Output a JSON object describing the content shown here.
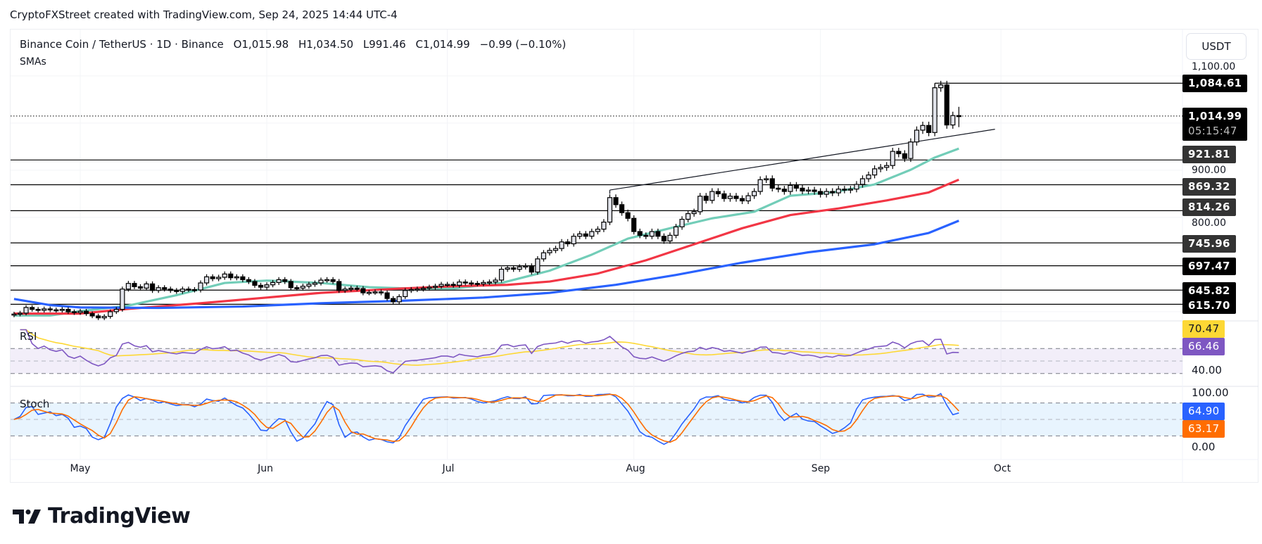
{
  "credit": "CryptoFXStreet created with TradingView.com, Sep 24, 2025 14:44 UTC-4",
  "legend": {
    "symbol": "Binance Coin / TetherUS · 1D · Binance",
    "open": "O1,015.98",
    "high": "H1,034.50",
    "low": "L991.46",
    "close": "C1,014.99",
    "change": "−0.99 (−0.10%)",
    "indicator": "SMAs"
  },
  "currency_button": "USDT",
  "price_axis": {
    "ticks": [
      "1,100.00",
      "900.00",
      "800.00"
    ],
    "last_price": "1,014.99",
    "countdown": "05:15:47",
    "levels": [
      {
        "value": 1084.61,
        "label": "1,084.61",
        "color": "#000000"
      },
      {
        "value": 921.81,
        "label": "921.81",
        "color": "#333333"
      },
      {
        "value": 869.32,
        "label": "869.32",
        "color": "#333333"
      },
      {
        "value": 814.26,
        "label": "814.26",
        "color": "#333333"
      },
      {
        "value": 745.96,
        "label": "745.96",
        "color": "#333333"
      },
      {
        "value": 697.47,
        "label": "697.47",
        "color": "#000000"
      },
      {
        "value": 645.82,
        "label": "645.82",
        "color": "#000000"
      },
      {
        "value": 615.7,
        "label": "615.70",
        "color": "#000000"
      }
    ]
  },
  "rsi": {
    "title": "RSI",
    "ma_value": "70.47",
    "value": "66.46",
    "tick": "40.00",
    "ma_color": "#fdd835",
    "color": "#7e57c2"
  },
  "stoch": {
    "title": "Stoch",
    "k_value": "64.90",
    "d_value": "63.17",
    "tick_top": "100.00",
    "tick_bottom": "0.00",
    "k_color": "#2962ff",
    "d_color": "#ff6d00"
  },
  "x_axis": [
    "May",
    "Jun",
    "Jul",
    "Aug",
    "Sep",
    "Oct"
  ],
  "logo": "TradingView",
  "chart_data": {
    "type": "candlestick",
    "start_date": "2025-04-20",
    "interval": "1D",
    "closes": [
      595,
      597,
      609,
      605,
      603,
      606,
      604,
      603,
      605,
      600,
      598,
      601,
      596,
      591,
      587,
      590,
      600,
      605,
      648,
      660,
      653,
      650,
      659,
      645,
      651,
      648,
      645,
      643,
      648,
      647,
      646,
      661,
      674,
      670,
      673,
      680,
      672,
      674,
      668,
      664,
      656,
      652,
      657,
      662,
      668,
      664,
      651,
      650,
      654,
      658,
      661,
      667,
      668,
      664,
      645,
      648,
      650,
      649,
      640,
      641,
      642,
      640,
      628,
      621,
      632,
      645,
      647,
      648,
      650,
      652,
      654,
      658,
      658,
      656,
      663,
      661,
      660,
      659,
      662,
      663,
      667,
      690,
      693,
      690,
      695,
      697,
      684,
      712,
      725,
      730,
      734,
      748,
      744,
      760,
      765,
      760,
      770,
      775,
      790,
      842,
      827,
      810,
      798,
      770,
      762,
      760,
      770,
      760,
      750,
      762,
      780,
      796,
      808,
      812,
      845,
      836,
      855,
      850,
      840,
      845,
      840,
      835,
      846,
      855,
      880,
      882,
      862,
      860,
      855,
      868,
      862,
      856,
      858,
      855,
      849,
      855,
      852,
      860,
      858,
      860,
      870,
      882,
      890,
      903,
      906,
      910,
      940,
      935,
      925,
      960,
      985,
      995,
      980,
      1075,
      1081,
      996,
      1016,
      1014.99
    ],
    "last_candle": {
      "open": 1015.98,
      "high": 1034.5,
      "low": 991.46,
      "close": 1014.99
    },
    "sma_series": [
      {
        "color": "#72cdb8",
        "points": [
          [
            "2025-04-20",
            592
          ],
          [
            "2025-04-26",
            592
          ],
          [
            "2025-05-01",
            601
          ],
          [
            "2025-05-09",
            613
          ],
          [
            "2025-05-17",
            635
          ],
          [
            "2025-05-25",
            661
          ],
          [
            "2025-06-01",
            666
          ],
          [
            "2025-06-10",
            661
          ],
          [
            "2025-06-18",
            652
          ],
          [
            "2025-06-23",
            650
          ],
          [
            "2025-07-02",
            649
          ],
          [
            "2025-07-10",
            661
          ],
          [
            "2025-07-18",
            687
          ],
          [
            "2025-07-25",
            721
          ],
          [
            "2025-07-31",
            755
          ],
          [
            "2025-08-07",
            777
          ],
          [
            "2025-08-14",
            798
          ],
          [
            "2025-08-21",
            812
          ],
          [
            "2025-08-27",
            846
          ],
          [
            "2025-09-03",
            853
          ],
          [
            "2025-09-10",
            870
          ],
          [
            "2025-09-16",
            901
          ],
          [
            "2025-09-20",
            927
          ],
          [
            "2025-09-24",
            946
          ]
        ]
      },
      {
        "color": "#f23645",
        "points": [
          [
            "2025-04-20",
            596
          ],
          [
            "2025-05-01",
            596
          ],
          [
            "2025-05-09",
            606
          ],
          [
            "2025-05-21",
            618
          ],
          [
            "2025-06-01",
            630
          ],
          [
            "2025-06-10",
            640
          ],
          [
            "2025-06-23",
            649
          ],
          [
            "2025-07-02",
            654
          ],
          [
            "2025-07-11",
            657
          ],
          [
            "2025-07-18",
            664
          ],
          [
            "2025-07-26",
            681
          ],
          [
            "2025-08-03",
            709
          ],
          [
            "2025-08-11",
            743
          ],
          [
            "2025-08-19",
            777
          ],
          [
            "2025-08-27",
            805
          ],
          [
            "2025-09-04",
            819
          ],
          [
            "2025-09-12",
            836
          ],
          [
            "2025-09-19",
            853
          ],
          [
            "2025-09-24",
            880
          ]
        ]
      },
      {
        "color": "#2962ff",
        "points": [
          [
            "2025-04-20",
            627
          ],
          [
            "2025-04-26",
            614
          ],
          [
            "2025-05-01",
            609
          ],
          [
            "2025-05-14",
            608
          ],
          [
            "2025-05-28",
            611
          ],
          [
            "2025-06-10",
            618
          ],
          [
            "2025-06-23",
            623
          ],
          [
            "2025-07-07",
            630
          ],
          [
            "2025-07-18",
            640
          ],
          [
            "2025-07-29",
            657
          ],
          [
            "2025-08-08",
            678
          ],
          [
            "2025-08-19",
            704
          ],
          [
            "2025-08-30",
            726
          ],
          [
            "2025-09-10",
            743
          ],
          [
            "2025-09-19",
            767
          ],
          [
            "2025-09-24",
            793
          ]
        ]
      }
    ],
    "trendline": {
      "from": [
        "2025-07-28",
        858
      ],
      "to": [
        "2025-09-30",
        987
      ]
    },
    "resistance_from": "2025-09-20"
  }
}
